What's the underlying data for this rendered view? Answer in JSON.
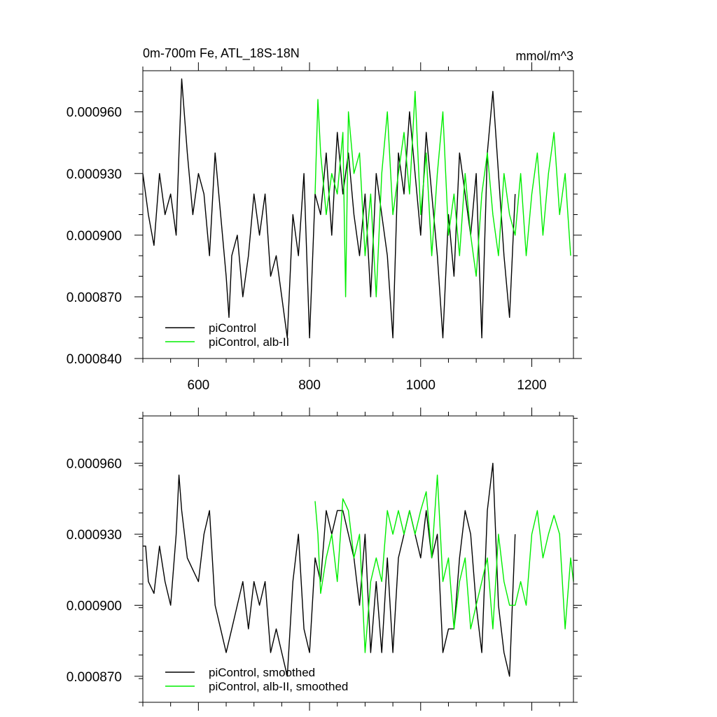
{
  "colors": {
    "series1": "#000000",
    "series2": "#00ee00",
    "axis": "#000000"
  },
  "chart_data": [
    {
      "type": "line",
      "title": "0m-700m Fe, ATL_18S-18N",
      "units": "mmol/m^3",
      "xlim": [
        500,
        1275
      ],
      "ylim": [
        0.00084,
        0.00098
      ],
      "x_ticks": [
        600,
        800,
        1000,
        1200
      ],
      "x_tick_labels": [
        "600",
        "800",
        "1000",
        "1200"
      ],
      "y_ticks": [
        0.00084,
        0.00087,
        0.0009,
        0.00093,
        0.00096
      ],
      "y_tick_labels": [
        "0.000840",
        "0.000870",
        "0.000900",
        "0.000930",
        "0.000960"
      ],
      "legend": {
        "position": "bottom-left"
      },
      "series": [
        {
          "name": "piControl",
          "color": "#000000",
          "x": [
            500,
            510,
            520,
            530,
            540,
            550,
            560,
            565,
            570,
            580,
            590,
            600,
            610,
            620,
            630,
            640,
            650,
            655,
            660,
            670,
            680,
            690,
            700,
            710,
            720,
            730,
            740,
            750,
            760,
            770,
            780,
            790,
            800,
            810,
            820,
            830,
            840,
            850,
            860,
            870,
            880,
            890,
            900,
            910,
            920,
            930,
            940,
            950,
            960,
            970,
            980,
            990,
            1000,
            1010,
            1020,
            1030,
            1040,
            1050,
            1060,
            1070,
            1080,
            1090,
            1100,
            1110,
            1120,
            1130,
            1140,
            1150,
            1160,
            1170
          ],
          "y": [
            0.00093,
            0.00091,
            0.000895,
            0.00093,
            0.00091,
            0.00092,
            0.0009,
            0.00094,
            0.000976,
            0.00094,
            0.00091,
            0.00093,
            0.00092,
            0.00089,
            0.00094,
            0.00091,
            0.00088,
            0.00086,
            0.00089,
            0.0009,
            0.00087,
            0.00089,
            0.00092,
            0.0009,
            0.00092,
            0.00088,
            0.00089,
            0.00087,
            0.00085,
            0.00091,
            0.00089,
            0.00093,
            0.00085,
            0.00092,
            0.00091,
            0.00094,
            0.0009,
            0.00095,
            0.00092,
            0.00094,
            0.00091,
            0.00089,
            0.00092,
            0.00087,
            0.00093,
            0.00091,
            0.00089,
            0.00085,
            0.00094,
            0.00092,
            0.00096,
            0.00093,
            0.0009,
            0.00095,
            0.00092,
            0.00089,
            0.00085,
            0.00091,
            0.00088,
            0.00094,
            0.00092,
            0.0009,
            0.00093,
            0.00085,
            0.00094,
            0.00097,
            0.00093,
            0.00089,
            0.00086,
            0.00092
          ]
        },
        {
          "name": "piControl, alb-II",
          "color": "#00ee00",
          "x": [
            810,
            815,
            820,
            830,
            840,
            850,
            860,
            865,
            870,
            880,
            890,
            900,
            910,
            920,
            930,
            940,
            950,
            960,
            970,
            980,
            990,
            1000,
            1010,
            1020,
            1030,
            1040,
            1050,
            1060,
            1070,
            1080,
            1090,
            1100,
            1110,
            1120,
            1130,
            1140,
            1150,
            1160,
            1170,
            1180,
            1190,
            1200,
            1210,
            1220,
            1230,
            1240,
            1250,
            1260,
            1270
          ],
          "y": [
            0.00092,
            0.000966,
            0.00094,
            0.00091,
            0.00093,
            0.00092,
            0.00095,
            0.00087,
            0.00096,
            0.00093,
            0.00094,
            0.00089,
            0.00092,
            0.00087,
            0.00093,
            0.00096,
            0.00091,
            0.00093,
            0.00095,
            0.00092,
            0.00097,
            0.00091,
            0.00094,
            0.00089,
            0.00093,
            0.00096,
            0.0009,
            0.00092,
            0.00089,
            0.00093,
            0.0009,
            0.00088,
            0.00092,
            0.00094,
            0.00091,
            0.00089,
            0.00093,
            0.00091,
            0.0009,
            0.00093,
            0.00089,
            0.00092,
            0.00094,
            0.0009,
            0.00093,
            0.00095,
            0.00091,
            0.00093,
            0.00089
          ]
        }
      ]
    },
    {
      "type": "line",
      "title": "",
      "xlim": [
        500,
        1275
      ],
      "ylim": [
        0.000859,
        0.00098
      ],
      "x_ticks": [
        600,
        800,
        1000,
        1200
      ],
      "x_tick_labels": [],
      "y_ticks": [
        0.00087,
        0.0009,
        0.00093,
        0.00096
      ],
      "y_tick_labels": [
        "0.000870",
        "0.000900",
        "0.000930",
        "0.000960"
      ],
      "legend": {
        "position": "bottom-left"
      },
      "series": [
        {
          "name": "piControl, smoothed",
          "color": "#000000",
          "x": [
            500,
            505,
            510,
            520,
            530,
            540,
            550,
            560,
            565,
            570,
            580,
            590,
            600,
            610,
            620,
            630,
            640,
            650,
            660,
            670,
            680,
            690,
            700,
            710,
            720,
            730,
            740,
            750,
            760,
            770,
            780,
            790,
            800,
            810,
            820,
            830,
            840,
            850,
            860,
            870,
            880,
            890,
            900,
            910,
            920,
            930,
            940,
            950,
            960,
            970,
            980,
            990,
            1000,
            1010,
            1020,
            1030,
            1040,
            1050,
            1060,
            1070,
            1080,
            1090,
            1100,
            1110,
            1120,
            1130,
            1140,
            1150,
            1160,
            1170
          ],
          "y": [
            0.000925,
            0.000925,
            0.00091,
            0.000905,
            0.000925,
            0.00091,
            0.0009,
            0.00093,
            0.000955,
            0.00094,
            0.00092,
            0.000915,
            0.00091,
            0.00093,
            0.00094,
            0.0009,
            0.00089,
            0.00088,
            0.00089,
            0.0009,
            0.00091,
            0.00089,
            0.00091,
            0.0009,
            0.00091,
            0.00088,
            0.00089,
            0.00088,
            0.00087,
            0.00091,
            0.00093,
            0.00089,
            0.00088,
            0.00092,
            0.00091,
            0.00094,
            0.00093,
            0.00094,
            0.00094,
            0.00093,
            0.00092,
            0.0009,
            0.00093,
            0.00088,
            0.00091,
            0.00088,
            0.00092,
            0.00088,
            0.00092,
            0.00093,
            0.00094,
            0.00093,
            0.00092,
            0.00094,
            0.00092,
            0.00093,
            0.00088,
            0.00089,
            0.00089,
            0.00092,
            0.00094,
            0.00093,
            0.0009,
            0.00088,
            0.00094,
            0.00096,
            0.0009,
            0.00088,
            0.00087,
            0.00093
          ]
        },
        {
          "name": "piControl, alb-II, smoothed",
          "color": "#00ee00",
          "x": [
            810,
            815,
            820,
            830,
            840,
            850,
            860,
            870,
            880,
            890,
            900,
            910,
            920,
            930,
            940,
            950,
            960,
            970,
            980,
            990,
            1000,
            1010,
            1020,
            1030,
            1040,
            1050,
            1060,
            1070,
            1080,
            1090,
            1100,
            1110,
            1120,
            1130,
            1140,
            1150,
            1160,
            1170,
            1180,
            1190,
            1200,
            1210,
            1220,
            1230,
            1240,
            1250,
            1260,
            1270,
            1275
          ],
          "y": [
            0.000944,
            0.00093,
            0.000905,
            0.00092,
            0.00093,
            0.00091,
            0.000945,
            0.00094,
            0.00092,
            0.00093,
            0.00088,
            0.00091,
            0.00092,
            0.00091,
            0.00094,
            0.00093,
            0.00094,
            0.00093,
            0.00094,
            0.00093,
            0.00094,
            0.000948,
            0.00092,
            0.000955,
            0.00091,
            0.00092,
            0.00089,
            0.00091,
            0.00092,
            0.00089,
            0.0009,
            0.00091,
            0.00092,
            0.00089,
            0.00093,
            0.00091,
            0.0009,
            0.0009,
            0.00091,
            0.0009,
            0.00093,
            0.00094,
            0.00092,
            0.00093,
            0.000938,
            0.00093,
            0.00089,
            0.00092,
            0.00091
          ]
        }
      ]
    }
  ]
}
